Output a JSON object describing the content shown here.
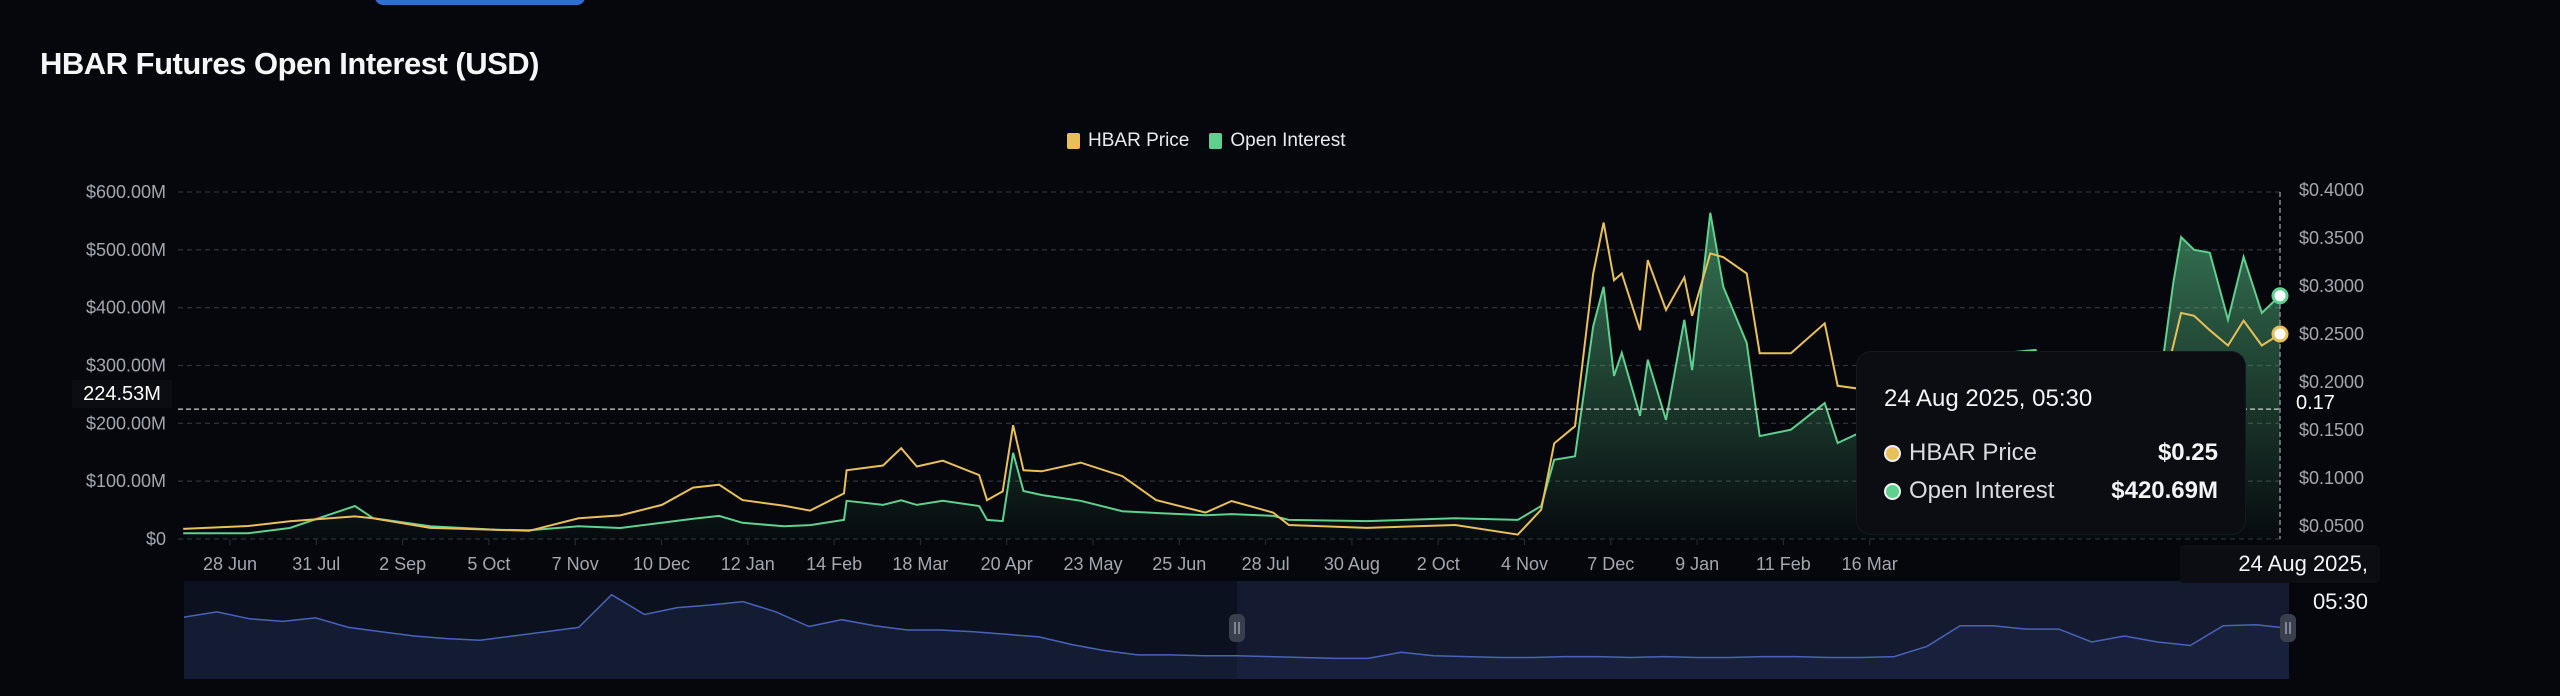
{
  "page": {
    "title": "HBAR Futures Open Interest (USD)"
  },
  "colors": {
    "background": "#05070c",
    "price": "#e8c05a",
    "open_interest": "#5fd08f",
    "navigator": "#4a63b8",
    "top_button": "#2f6fd0"
  },
  "chart_data": {
    "type": "line",
    "title": "HBAR Futures Open Interest (USD)",
    "legend": {
      "position": "top-center",
      "entries": [
        "HBAR Price",
        "Open Interest"
      ]
    },
    "grid": true,
    "y_left": {
      "ticks": [
        "$0",
        "$100.00M",
        "$200.00M",
        "$300.00M",
        "$400.00M",
        "$500.00M",
        "$600.00M"
      ],
      "range_musd": [
        0,
        600
      ]
    },
    "y_right": {
      "ticks": [
        "$0.0500",
        "$0.1000",
        "$0.1500",
        "$0.2000",
        "$0.2500",
        "$0.3000",
        "$0.3500",
        "$0.4000"
      ],
      "range_usd": [
        0.05,
        0.4
      ]
    },
    "x_ticks": [
      "28 Jun",
      "31 Jul",
      "2 Sep",
      "5 Oct",
      "7 Nov",
      "10 Dec",
      "12 Jan",
      "14 Feb",
      "18 Mar",
      "20 Apr",
      "23 May",
      "25 Jun",
      "28 Jul",
      "30 Aug",
      "2 Oct",
      "4 Nov",
      "7 Dec",
      "9 Jan",
      "11 Feb",
      "16 Mar"
    ],
    "x_range": [
      "2023-06-10",
      "2025-08-24"
    ],
    "series": [
      {
        "name": "Open Interest",
        "unit": "M USD",
        "axis": "left",
        "points": [
          [
            "2023-06-10",
            10
          ],
          [
            "2023-07-05",
            10
          ],
          [
            "2023-07-21",
            19
          ],
          [
            "2023-08-15",
            57
          ],
          [
            "2023-08-22",
            36
          ],
          [
            "2023-09-13",
            22
          ],
          [
            "2023-10-08",
            16
          ],
          [
            "2023-10-21",
            15
          ],
          [
            "2023-11-09",
            22
          ],
          [
            "2023-11-25",
            19
          ],
          [
            "2023-12-11",
            28
          ],
          [
            "2023-12-23",
            35
          ],
          [
            "2024-01-02",
            40
          ],
          [
            "2024-01-11",
            28
          ],
          [
            "2024-01-27",
            22
          ],
          [
            "2024-02-06",
            24
          ],
          [
            "2024-02-19",
            33
          ],
          [
            "2024-02-20",
            66
          ],
          [
            "2024-03-05",
            59
          ],
          [
            "2024-03-12",
            67
          ],
          [
            "2024-03-18",
            59
          ],
          [
            "2024-03-28",
            66
          ],
          [
            "2024-04-11",
            57
          ],
          [
            "2024-04-14",
            33
          ],
          [
            "2024-04-20",
            31
          ],
          [
            "2024-04-24",
            149
          ],
          [
            "2024-04-28",
            83
          ],
          [
            "2024-05-05",
            76
          ],
          [
            "2024-05-20",
            66
          ],
          [
            "2024-06-05",
            48
          ],
          [
            "2024-06-18",
            45
          ],
          [
            "2024-07-07",
            41
          ],
          [
            "2024-07-17",
            43
          ],
          [
            "2024-08-02",
            40
          ],
          [
            "2024-08-08",
            33
          ],
          [
            "2024-09-07",
            31
          ],
          [
            "2024-10-11",
            36
          ],
          [
            "2024-11-04",
            33
          ],
          [
            "2024-11-13",
            57
          ],
          [
            "2024-11-18",
            137
          ],
          [
            "2024-11-26",
            143
          ],
          [
            "2024-12-03",
            368
          ],
          [
            "2024-12-07",
            436
          ],
          [
            "2024-12-11",
            282
          ],
          [
            "2024-12-14",
            322
          ],
          [
            "2024-12-21",
            213
          ],
          [
            "2024-12-24",
            310
          ],
          [
            "2024-12-31",
            206
          ],
          [
            "2025-01-07",
            379
          ],
          [
            "2025-01-10",
            292
          ],
          [
            "2025-01-17",
            564
          ],
          [
            "2025-01-22",
            436
          ],
          [
            "2025-01-31",
            339
          ],
          [
            "2025-02-05",
            178
          ],
          [
            "2025-02-17",
            189
          ],
          [
            "2025-03-02",
            235
          ],
          [
            "2025-03-07",
            166
          ],
          [
            "2025-03-26",
            206
          ],
          [
            "2025-04-05",
            166
          ],
          [
            "2025-04-21",
            218
          ],
          [
            "2025-04-29",
            240
          ],
          [
            "2025-05-11",
            322
          ],
          [
            "2025-05-22",
            327
          ],
          [
            "2025-05-31",
            240
          ],
          [
            "2025-06-10",
            273
          ],
          [
            "2025-06-23",
            213
          ],
          [
            "2025-07-03",
            223
          ],
          [
            "2025-07-10",
            310
          ],
          [
            "2025-07-14",
            443
          ],
          [
            "2025-07-17",
            522
          ],
          [
            "2025-07-22",
            500
          ],
          [
            "2025-07-28",
            495
          ],
          [
            "2025-08-04",
            379
          ],
          [
            "2025-08-10",
            488
          ],
          [
            "2025-08-17",
            391
          ],
          [
            "2025-08-24",
            420.69
          ]
        ]
      },
      {
        "name": "HBAR Price",
        "unit": "USD",
        "axis": "right",
        "points": [
          [
            "2023-06-10",
            0.047
          ],
          [
            "2023-07-05",
            0.05
          ],
          [
            "2023-07-21",
            0.055
          ],
          [
            "2023-08-15",
            0.06
          ],
          [
            "2023-08-22",
            0.058
          ],
          [
            "2023-09-13",
            0.048
          ],
          [
            "2023-10-08",
            0.046
          ],
          [
            "2023-10-21",
            0.045
          ],
          [
            "2023-11-09",
            0.058
          ],
          [
            "2023-11-25",
            0.061
          ],
          [
            "2023-12-11",
            0.072
          ],
          [
            "2023-12-23",
            0.09
          ],
          [
            "2024-01-02",
            0.093
          ],
          [
            "2024-01-11",
            0.077
          ],
          [
            "2024-01-27",
            0.071
          ],
          [
            "2024-02-06",
            0.066
          ],
          [
            "2024-02-19",
            0.084
          ],
          [
            "2024-02-20",
            0.108
          ],
          [
            "2024-03-05",
            0.113
          ],
          [
            "2024-03-12",
            0.131
          ],
          [
            "2024-03-18",
            0.112
          ],
          [
            "2024-03-28",
            0.118
          ],
          [
            "2024-04-11",
            0.103
          ],
          [
            "2024-04-14",
            0.077
          ],
          [
            "2024-04-20",
            0.086
          ],
          [
            "2024-04-24",
            0.155
          ],
          [
            "2024-04-28",
            0.108
          ],
          [
            "2024-05-05",
            0.107
          ],
          [
            "2024-05-20",
            0.116
          ],
          [
            "2024-06-05",
            0.102
          ],
          [
            "2024-06-18",
            0.077
          ],
          [
            "2024-07-07",
            0.064
          ],
          [
            "2024-07-17",
            0.076
          ],
          [
            "2024-08-02",
            0.064
          ],
          [
            "2024-08-08",
            0.051
          ],
          [
            "2024-09-07",
            0.048
          ],
          [
            "2024-10-11",
            0.051
          ],
          [
            "2024-11-04",
            0.041
          ],
          [
            "2024-11-13",
            0.067
          ],
          [
            "2024-11-18",
            0.136
          ],
          [
            "2024-11-26",
            0.154
          ],
          [
            "2024-12-03",
            0.313
          ],
          [
            "2024-12-07",
            0.366
          ],
          [
            "2024-12-11",
            0.306
          ],
          [
            "2024-12-14",
            0.313
          ],
          [
            "2024-12-21",
            0.254
          ],
          [
            "2024-12-24",
            0.327
          ],
          [
            "2024-12-31",
            0.275
          ],
          [
            "2025-01-07",
            0.309
          ],
          [
            "2025-01-10",
            0.269
          ],
          [
            "2025-01-17",
            0.334
          ],
          [
            "2025-01-22",
            0.33
          ],
          [
            "2025-01-31",
            0.313
          ],
          [
            "2025-02-05",
            0.23
          ],
          [
            "2025-02-17",
            0.23
          ],
          [
            "2025-03-02",
            0.261
          ],
          [
            "2025-03-07",
            0.196
          ],
          [
            "2025-03-26",
            0.189
          ],
          [
            "2025-04-05",
            0.157
          ],
          [
            "2025-04-21",
            0.181
          ],
          [
            "2025-04-29",
            0.185
          ],
          [
            "2025-05-11",
            0.209
          ],
          [
            "2025-05-22",
            0.189
          ],
          [
            "2025-05-31",
            0.168
          ],
          [
            "2025-06-10",
            0.171
          ],
          [
            "2025-06-23",
            0.136
          ],
          [
            "2025-07-03",
            0.157
          ],
          [
            "2025-07-10",
            0.196
          ],
          [
            "2025-07-14",
            0.238
          ],
          [
            "2025-07-17",
            0.272
          ],
          [
            "2025-07-22",
            0.269
          ],
          [
            "2025-07-28",
            0.254
          ],
          [
            "2025-08-04",
            0.238
          ],
          [
            "2025-08-10",
            0.264
          ],
          [
            "2025-08-17",
            0.238
          ],
          [
            "2025-08-24",
            0.25
          ]
        ]
      }
    ],
    "navigator_series": [
      0.72,
      0.78,
      0.7,
      0.67,
      0.71,
      0.6,
      0.55,
      0.5,
      0.47,
      0.45,
      0.5,
      0.55,
      0.6,
      0.98,
      0.75,
      0.83,
      0.86,
      0.9,
      0.78,
      0.61,
      0.69,
      0.62,
      0.57,
      0.57,
      0.55,
      0.52,
      0.49,
      0.4,
      0.33,
      0.28,
      0.28,
      0.27,
      0.27,
      0.26,
      0.25,
      0.24,
      0.24,
      0.31,
      0.27,
      0.26,
      0.25,
      0.25,
      0.26,
      0.26,
      0.25,
      0.26,
      0.25,
      0.25,
      0.26,
      0.26,
      0.25,
      0.25,
      0.26,
      0.38,
      0.62,
      0.62,
      0.58,
      0.58,
      0.43,
      0.5,
      0.43,
      0.39,
      0.62,
      0.63,
      0.59
    ],
    "navigator_selection": [
      "2023-06-10",
      "2025-08-24"
    ]
  },
  "crosshair": {
    "y_left_label": "224.53M",
    "y_right_label": "0.17",
    "x_label": "24 Aug 2025, 05:30"
  },
  "tooltip": {
    "date": "24 Aug 2025, 05:30",
    "rows": [
      {
        "label": "HBAR Price",
        "value": "$0.25"
      },
      {
        "label": "Open Interest",
        "value": "$420.69M"
      }
    ]
  }
}
